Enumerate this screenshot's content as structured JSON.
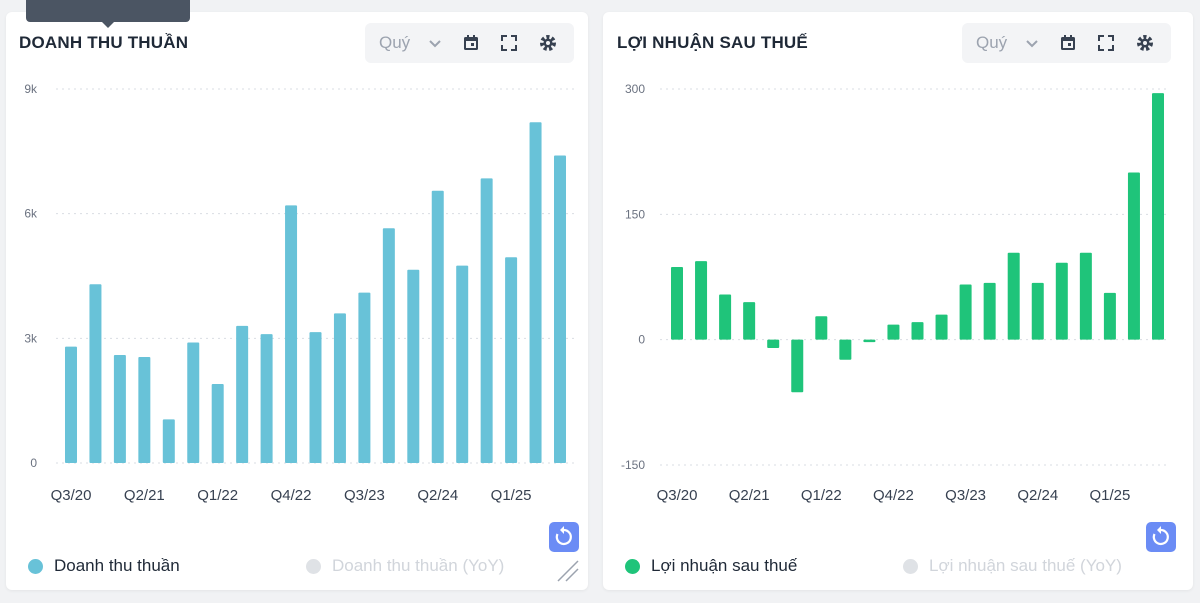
{
  "colors": {
    "revenue": "#68c2d8",
    "profit": "#1fc47a",
    "disabled": "#dfe2e6",
    "grid": "#d9dde3"
  },
  "left": {
    "title": "DOANH THU THUẦN",
    "period": "Quý",
    "legend": [
      "Doanh thu thuần",
      "Doanh thu thuần (YoY)"
    ]
  },
  "right": {
    "title": "LỢI NHUẬN SAU THUẾ",
    "period": "Quý",
    "legend": [
      "Lợi nhuận sau thuế",
      "Lợi nhuận sau thuế (YoY)"
    ]
  },
  "chart_data": [
    {
      "type": "bar",
      "title": "DOANH THU THUẦN",
      "series": [
        {
          "name": "Doanh thu thuần",
          "values": [
            2800,
            4300,
            2600,
            2550,
            1050,
            2900,
            1900,
            3300,
            3100,
            6200,
            3150,
            3600,
            4100,
            5650,
            4650,
            6550,
            4750,
            6850,
            4950,
            8200,
            7400
          ]
        }
      ],
      "xtick_labels": [
        "Q3/20",
        "Q2/21",
        "Q1/22",
        "Q4/22",
        "Q3/23",
        "Q2/24",
        "Q1/25"
      ],
      "ytick_labels": [
        "0",
        "3k",
        "6k",
        "9k"
      ],
      "ylim": [
        0,
        9000
      ]
    },
    {
      "type": "bar",
      "title": "LỢI NHUẬN SAU THUẾ",
      "series": [
        {
          "name": "Lợi nhuận sau thuế",
          "values": [
            87,
            94,
            54,
            45,
            -10,
            -63,
            28,
            -24,
            -3,
            18,
            21,
            30,
            66,
            68,
            104,
            68,
            92,
            104,
            56,
            200,
            295
          ]
        }
      ],
      "xtick_labels": [
        "Q3/20",
        "Q2/21",
        "Q1/22",
        "Q4/22",
        "Q3/23",
        "Q2/24",
        "Q1/25"
      ],
      "ytick_labels": [
        "-150",
        "0",
        "150",
        "300"
      ],
      "ylim": [
        -150,
        300
      ]
    }
  ]
}
